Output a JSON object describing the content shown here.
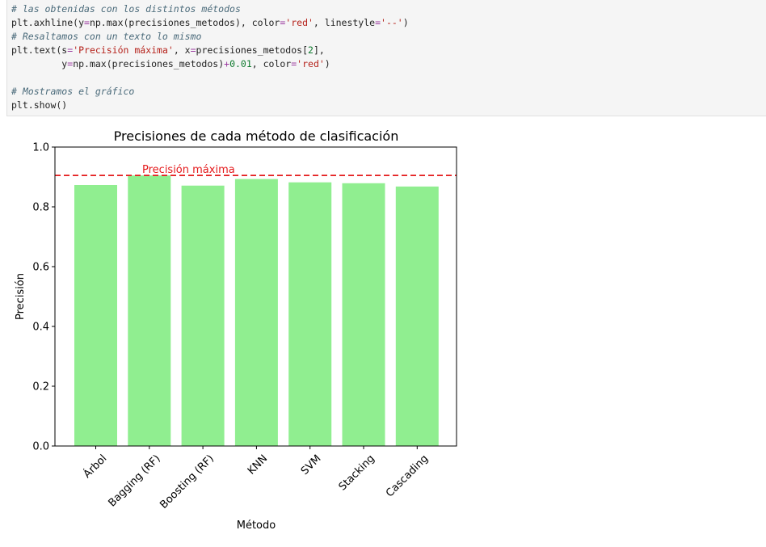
{
  "code_cell": {
    "lines": [
      {
        "segments": [
          {
            "t": "# las obtenidas con los distintos métodos",
            "c": "comment"
          }
        ]
      },
      {
        "segments": [
          {
            "t": "plt.axhline(y",
            "c": ""
          },
          {
            "t": "=",
            "c": "op"
          },
          {
            "t": "np.max(precisiones_metodos), color",
            "c": ""
          },
          {
            "t": "=",
            "c": "op"
          },
          {
            "t": "'red'",
            "c": "str"
          },
          {
            "t": ", linestyle",
            "c": ""
          },
          {
            "t": "=",
            "c": "op"
          },
          {
            "t": "'--'",
            "c": "str"
          },
          {
            "t": ")",
            "c": ""
          }
        ]
      },
      {
        "segments": [
          {
            "t": "# Resaltamos con un texto lo mismo",
            "c": "comment"
          }
        ]
      },
      {
        "segments": [
          {
            "t": "plt.text(s",
            "c": ""
          },
          {
            "t": "=",
            "c": "op"
          },
          {
            "t": "'Precisión máxima'",
            "c": "str"
          },
          {
            "t": ", x",
            "c": ""
          },
          {
            "t": "=",
            "c": "op"
          },
          {
            "t": "precisiones_metodos[",
            "c": ""
          },
          {
            "t": "2",
            "c": "num"
          },
          {
            "t": "],",
            "c": ""
          }
        ]
      },
      {
        "segments": [
          {
            "t": "         y",
            "c": ""
          },
          {
            "t": "=",
            "c": "op"
          },
          {
            "t": "np.max(precisiones_metodos)",
            "c": ""
          },
          {
            "t": "+",
            "c": "op"
          },
          {
            "t": "0.01",
            "c": "num"
          },
          {
            "t": ", color",
            "c": ""
          },
          {
            "t": "=",
            "c": "op"
          },
          {
            "t": "'red'",
            "c": "str"
          },
          {
            "t": ")",
            "c": ""
          }
        ]
      },
      {
        "segments": [
          {
            "t": "",
            "c": ""
          }
        ]
      },
      {
        "segments": [
          {
            "t": "# Mostramos el gráfico",
            "c": "comment"
          }
        ]
      },
      {
        "segments": [
          {
            "t": "plt.show()",
            "c": ""
          }
        ]
      }
    ]
  },
  "chart_data": {
    "type": "bar",
    "title": "Precisiones de cada método de clasificación",
    "xlabel": "Método",
    "ylabel": "Precisión",
    "categories": [
      "Árbol",
      "Bagging (RF)",
      "Boosting (RF)",
      "KNN",
      "SVM",
      "Stacking",
      "Cascading"
    ],
    "values": [
      0.873,
      0.905,
      0.871,
      0.893,
      0.882,
      0.879,
      0.868
    ],
    "ylim": [
      0,
      1.0
    ],
    "yticks": [
      "0.0",
      "0.2",
      "0.4",
      "0.6",
      "0.8",
      "1.0"
    ],
    "bar_color": "#90ee90",
    "hline": {
      "value": 0.905,
      "color": "#e41a1c",
      "linestyle": "dashed"
    },
    "annotation": {
      "text": "Precisión máxima",
      "color": "#e41a1c"
    },
    "grid": false,
    "legend": "none"
  }
}
